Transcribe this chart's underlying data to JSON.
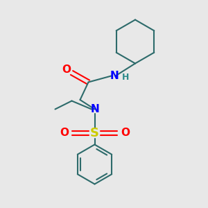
{
  "background_color": "#e8e8e8",
  "bond_color": "#2d6b6b",
  "n_color": "#0000ff",
  "o_color": "#ff0000",
  "s_color": "#cccc00",
  "h_color": "#2d8b8b",
  "line_width": 1.5,
  "font_size": 11,
  "fig_size": [
    3.0,
    3.0
  ],
  "dpi": 100,
  "xlim": [
    0,
    10
  ],
  "ylim": [
    0,
    10
  ]
}
